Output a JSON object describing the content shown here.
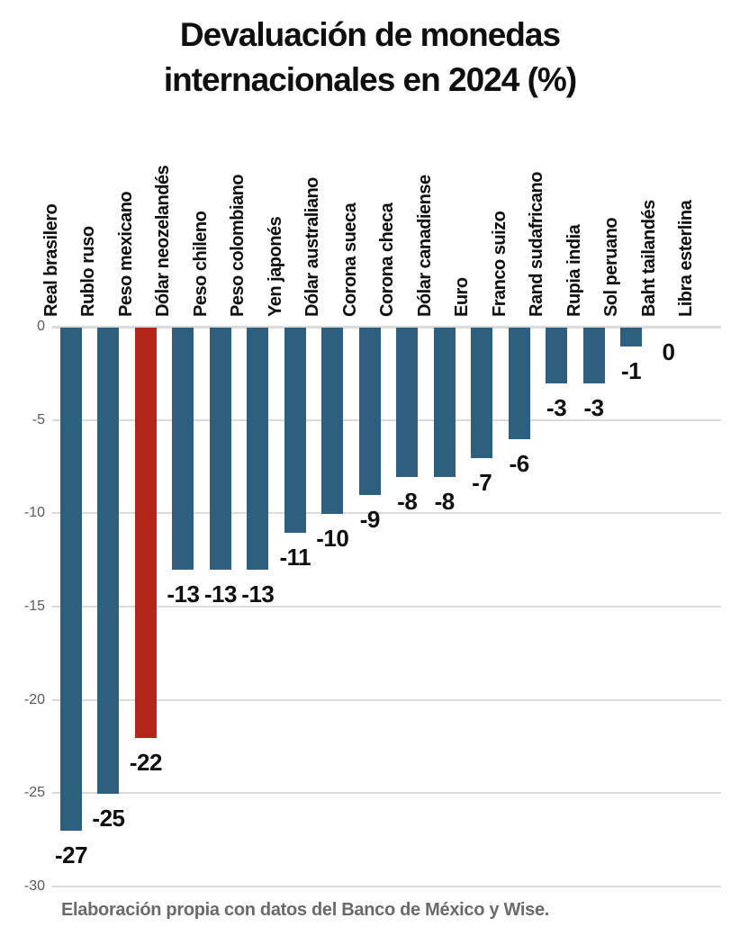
{
  "title": "Devaluación de monedas internacionales en 2024 (%)",
  "footer": "Elaboración propia con datos del Banco de México y Wise.",
  "colors": {
    "bar": "#2E5F7E",
    "highlight_bar": "#B2271A",
    "gridline": "#DBDBDB",
    "axis_text": "#595959",
    "label_text": "#0F0F0F",
    "footer_text": "#6A6A6A"
  },
  "chart_data": {
    "type": "bar",
    "orientation": "vertical-negative",
    "title": "Devaluación de monedas internacionales en 2024 (%)",
    "xlabel": "",
    "ylabel": "",
    "ylim": [
      -30,
      0
    ],
    "grid": true,
    "legend": false,
    "ytick_labels": [
      "0",
      "-5",
      "-10",
      "-15",
      "-20",
      "-25",
      "-30"
    ],
    "highlight_category": "Peso mexicano",
    "categories": [
      "Real brasilero",
      "Rublo ruso",
      "Peso mexicano",
      "Dólar neozelandés",
      "Peso chileno",
      "Peso colombiano",
      "Yen japonés",
      "Dólar australiano",
      "Corona sueca",
      "Corona checa",
      "Dólar canadiense",
      "Euro",
      "Franco suizo",
      "Rand sudafricano",
      "Rupia india",
      "Sol peruano",
      "Baht tailandés",
      "Libra esterlina"
    ],
    "values": [
      -27,
      -25,
      -22,
      -13,
      -13,
      -13,
      -11,
      -10,
      -9,
      -8,
      -8,
      -7,
      -6,
      -3,
      -3,
      -1,
      0,
      0
    ],
    "data_labels": [
      "-27",
      "-25",
      "-22",
      "-13",
      "-13",
      "-13",
      "-11",
      "-10",
      "-9",
      "-8",
      "-8",
      "-7",
      "-6",
      "-3",
      "-3",
      "-1",
      "0",
      ""
    ]
  }
}
